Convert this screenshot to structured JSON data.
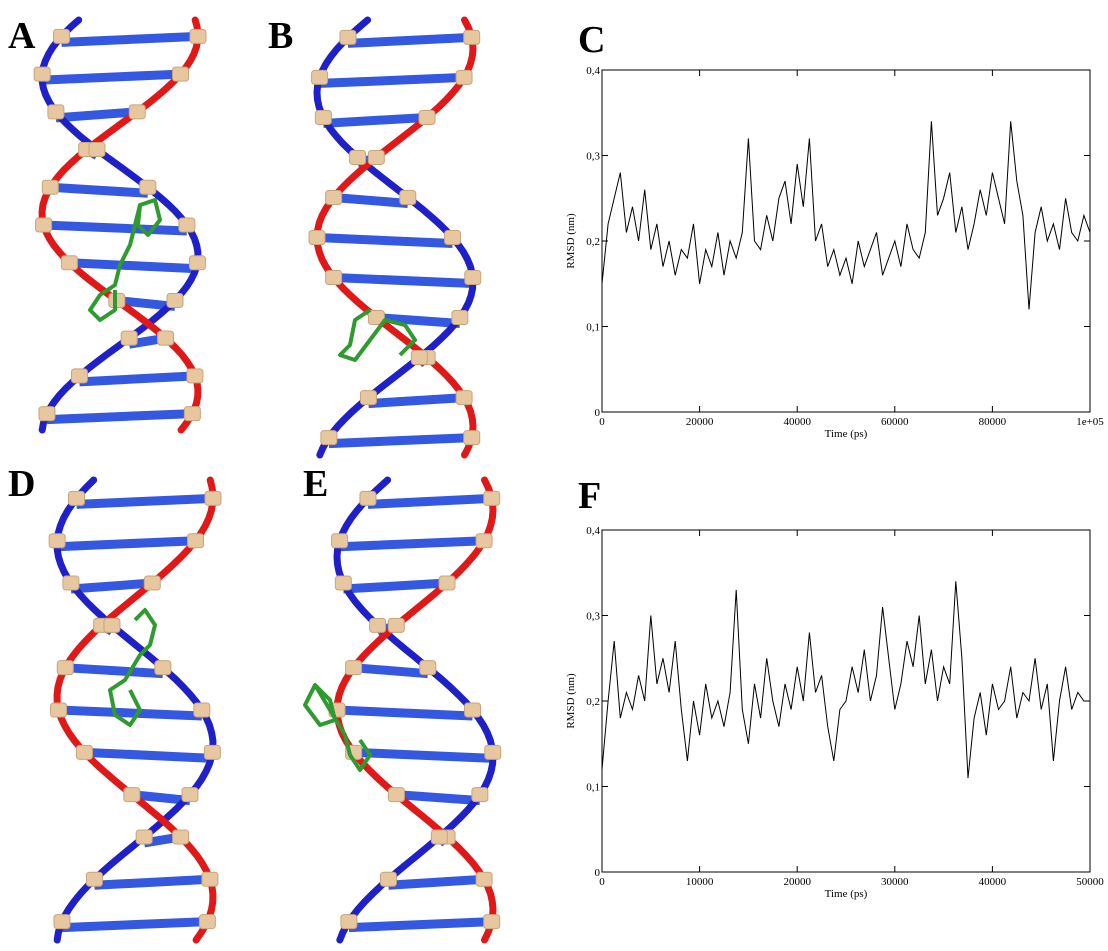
{
  "panel_labels": [
    "A",
    "B",
    "D",
    "E"
  ],
  "chart_data": [
    {
      "type": "line",
      "title": "C",
      "xlabel": "Time (ps)",
      "ylabel": "RMSD (nm)",
      "color": "#000000",
      "xlim": [
        0,
        100000
      ],
      "ylim": [
        0,
        0.4
      ],
      "xticks": [
        0,
        20000,
        40000,
        60000,
        80000,
        {
          "value": 100000,
          "label": "1e+05"
        }
      ],
      "yticks": [
        0,
        {
          "value": 0.1,
          "label": "0,1"
        },
        {
          "value": 0.2,
          "label": "0,2"
        },
        {
          "value": 0.3,
          "label": "0,3"
        },
        {
          "value": 0.4,
          "label": "0,4"
        }
      ],
      "x": [
        0,
        1250,
        2500,
        3750,
        5000,
        6250,
        7500,
        8750,
        10000,
        11250,
        12500,
        13750,
        15000,
        16250,
        17500,
        18750,
        20000,
        21250,
        22500,
        23750,
        25000,
        26250,
        27500,
        28750,
        30000,
        31250,
        32500,
        33750,
        35000,
        36250,
        37500,
        38750,
        40000,
        41250,
        42500,
        43750,
        45000,
        46250,
        47500,
        48750,
        50000,
        51250,
        52500,
        53750,
        55000,
        56250,
        57500,
        58750,
        60000,
        61250,
        62500,
        63750,
        65000,
        66250,
        67500,
        68750,
        70000,
        71250,
        72500,
        73750,
        75000,
        76250,
        77500,
        78750,
        80000,
        81250,
        82500,
        83750,
        85000,
        86250,
        87500,
        88750,
        90000,
        91250,
        92500,
        93750,
        95000,
        96250,
        97500,
        98750,
        100000
      ],
      "values": [
        0.15,
        0.22,
        0.25,
        0.28,
        0.21,
        0.24,
        0.2,
        0.26,
        0.19,
        0.22,
        0.17,
        0.2,
        0.16,
        0.19,
        0.18,
        0.22,
        0.15,
        0.19,
        0.17,
        0.21,
        0.16,
        0.2,
        0.18,
        0.21,
        0.32,
        0.2,
        0.19,
        0.23,
        0.2,
        0.25,
        0.27,
        0.22,
        0.29,
        0.24,
        0.32,
        0.2,
        0.22,
        0.17,
        0.19,
        0.16,
        0.18,
        0.15,
        0.2,
        0.17,
        0.19,
        0.21,
        0.16,
        0.18,
        0.2,
        0.17,
        0.22,
        0.19,
        0.18,
        0.21,
        0.34,
        0.23,
        0.25,
        0.28,
        0.21,
        0.24,
        0.19,
        0.22,
        0.26,
        0.23,
        0.28,
        0.25,
        0.22,
        0.34,
        0.27,
        0.23,
        0.12,
        0.21,
        0.24,
        0.2,
        0.22,
        0.19,
        0.25,
        0.21,
        0.2,
        0.23,
        0.21
      ]
    },
    {
      "type": "line",
      "title": "F",
      "xlabel": "Time (ps)",
      "ylabel": "RMSD (nm)",
      "color": "#000000",
      "xlim": [
        0,
        50000
      ],
      "ylim": [
        0,
        0.4
      ],
      "xticks": [
        0,
        10000,
        20000,
        30000,
        40000,
        50000
      ],
      "yticks": [
        0,
        {
          "value": 0.1,
          "label": "0,1"
        },
        {
          "value": 0.2,
          "label": "0,2"
        },
        {
          "value": 0.3,
          "label": "0,3"
        },
        {
          "value": 0.4,
          "label": "0,4"
        }
      ],
      "x": [
        0,
        625,
        1250,
        1875,
        2500,
        3125,
        3750,
        4375,
        5000,
        5625,
        6250,
        6875,
        7500,
        8125,
        8750,
        9375,
        10000,
        10625,
        11250,
        11875,
        12500,
        13125,
        13750,
        14375,
        15000,
        15625,
        16250,
        16875,
        17500,
        18125,
        18750,
        19375,
        20000,
        20625,
        21250,
        21875,
        22500,
        23125,
        23750,
        24375,
        25000,
        25625,
        26250,
        26875,
        27500,
        28125,
        28750,
        29375,
        30000,
        30625,
        31250,
        31875,
        32500,
        33125,
        33750,
        34375,
        35000,
        35625,
        36250,
        36875,
        37500,
        38125,
        38750,
        39375,
        40000,
        40625,
        41250,
        41875,
        42500,
        43125,
        43750,
        44375,
        45000,
        45625,
        46250,
        46875,
        47500,
        48125,
        48750,
        49375,
        50000
      ],
      "values": [
        0.12,
        0.2,
        0.27,
        0.18,
        0.21,
        0.19,
        0.23,
        0.2,
        0.3,
        0.22,
        0.25,
        0.21,
        0.27,
        0.19,
        0.13,
        0.2,
        0.16,
        0.22,
        0.18,
        0.2,
        0.17,
        0.21,
        0.33,
        0.19,
        0.15,
        0.22,
        0.18,
        0.25,
        0.2,
        0.17,
        0.22,
        0.19,
        0.24,
        0.2,
        0.28,
        0.21,
        0.23,
        0.17,
        0.13,
        0.19,
        0.2,
        0.24,
        0.21,
        0.26,
        0.2,
        0.23,
        0.31,
        0.25,
        0.19,
        0.22,
        0.27,
        0.24,
        0.3,
        0.22,
        0.26,
        0.2,
        0.24,
        0.22,
        0.34,
        0.25,
        0.11,
        0.18,
        0.21,
        0.16,
        0.22,
        0.19,
        0.2,
        0.24,
        0.18,
        0.21,
        0.2,
        0.25,
        0.19,
        0.22,
        0.13,
        0.2,
        0.24,
        0.19,
        0.21,
        0.2,
        0.2
      ]
    }
  ]
}
